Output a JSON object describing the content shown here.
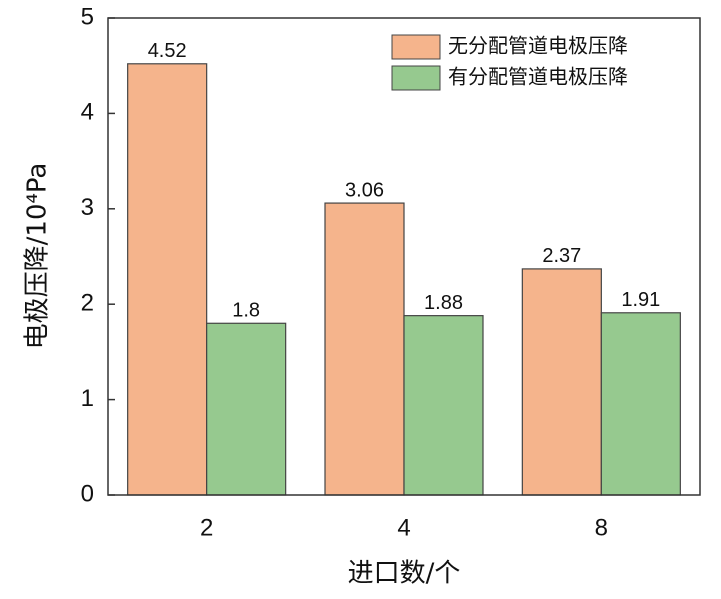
{
  "chart_data": {
    "type": "bar",
    "x_label": "进口数/个",
    "y_label": "电极压降/10⁴Pa",
    "categories": [
      "2",
      "4",
      "8"
    ],
    "series": [
      {
        "name": "无分配管道电极压降",
        "color": "#f5b48c",
        "values": [
          4.52,
          3.06,
          2.37
        ]
      },
      {
        "name": "有分配管道电极压降",
        "color": "#96c98f",
        "values": [
          1.8,
          1.88,
          1.91
        ]
      }
    ],
    "ylim": [
      0,
      5
    ],
    "yticks": [
      0,
      1,
      2,
      3,
      4,
      5
    ],
    "grid": false,
    "legend": "top-right"
  }
}
